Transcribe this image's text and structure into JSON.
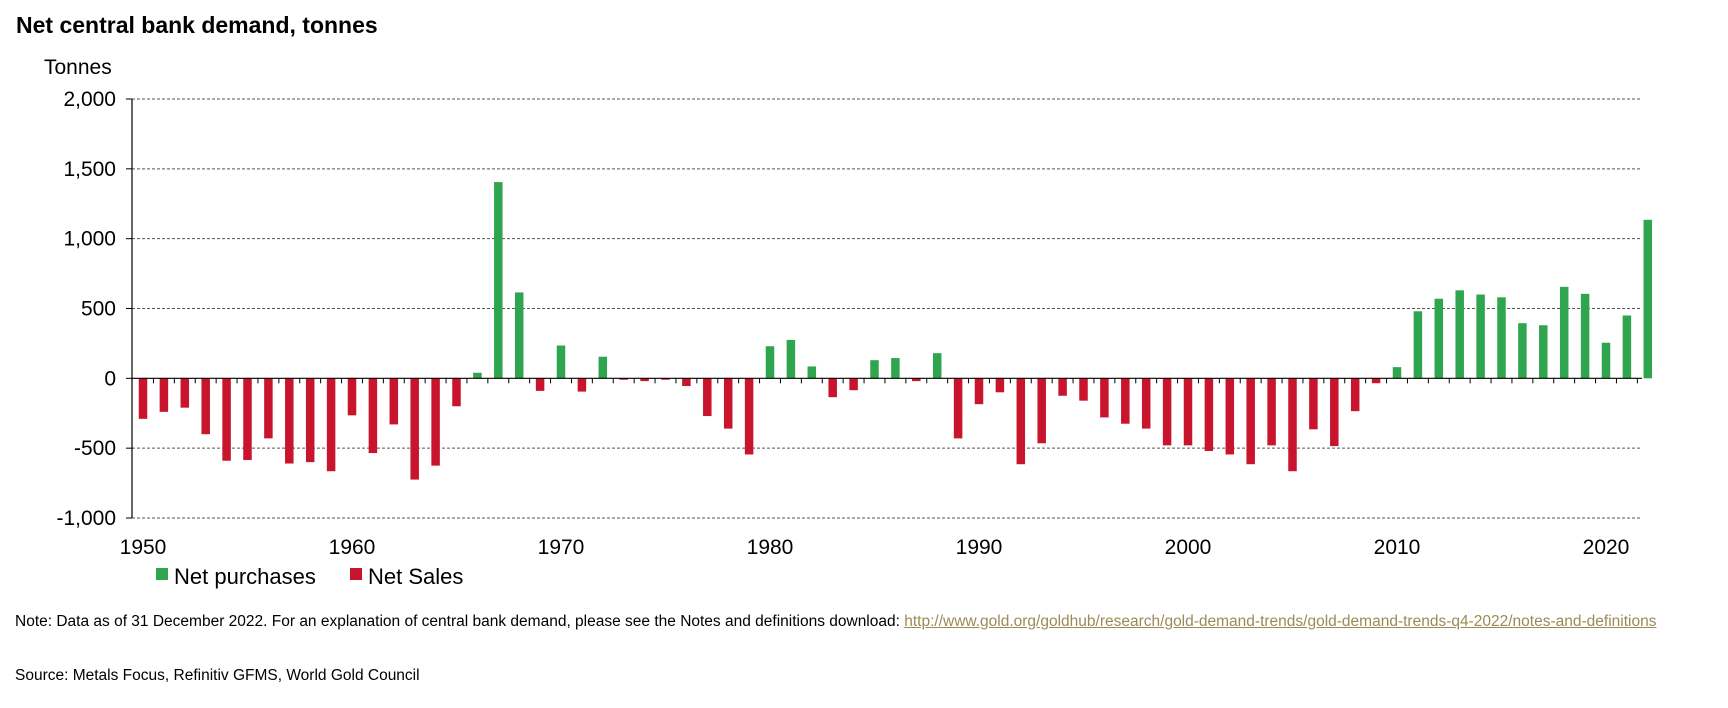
{
  "title": "Net central bank demand, tonnes",
  "note": {
    "text": "Note: Data as of 31 December 2022. For an explanation of central bank demand, please see the Notes and definitions download: ",
    "link": "http://www.gold.org/goldhub/research/gold-demand-trends/gold-demand-trends-q4-2022/notes-and-definitions"
  },
  "source": "Source: Metals Focus, Refinitiv GFMS, World Gold Council",
  "colors": {
    "positive": "#2ea54e",
    "negative": "#c8152d",
    "grid": "#555555",
    "axis": "#000000"
  },
  "chart_data": {
    "type": "bar",
    "title": "Net central bank demand, tonnes",
    "ylabel": "Tonnes",
    "xlabel": "",
    "ylim": [
      -1000,
      2000
    ],
    "yticks": [
      2000,
      1500,
      1000,
      500,
      0,
      -500,
      -1000
    ],
    "ytick_labels": [
      "2,000",
      "1,500",
      "1,000",
      "500",
      "0",
      "-500",
      "-1,000"
    ],
    "xticks": [
      1950,
      1960,
      1970,
      1980,
      1990,
      2000,
      2010,
      2020
    ],
    "xtick_labels": [
      "1950",
      "1960",
      "1970",
      "1980",
      "1990",
      "2000",
      "2010",
      "2020"
    ],
    "grid": "horizontal dashed",
    "legend": [
      {
        "label": "Net purchases",
        "color": "#2ea54e"
      },
      {
        "label": "Net Sales",
        "color": "#c8152d"
      }
    ],
    "legend_position": "bottom-left",
    "years": [
      1950,
      1951,
      1952,
      1953,
      1954,
      1955,
      1956,
      1957,
      1958,
      1959,
      1960,
      1961,
      1962,
      1963,
      1964,
      1965,
      1966,
      1967,
      1968,
      1969,
      1970,
      1971,
      1972,
      1973,
      1974,
      1975,
      1976,
      1977,
      1978,
      1979,
      1980,
      1981,
      1982,
      1983,
      1984,
      1985,
      1986,
      1987,
      1988,
      1989,
      1990,
      1991,
      1992,
      1993,
      1994,
      1995,
      1996,
      1997,
      1998,
      1999,
      2000,
      2001,
      2002,
      2003,
      2004,
      2005,
      2006,
      2007,
      2008,
      2009,
      2010,
      2011,
      2012,
      2013,
      2014,
      2015,
      2016,
      2017,
      2018,
      2019,
      2020,
      2021,
      2022
    ],
    "values": [
      -290,
      -240,
      -210,
      -400,
      -590,
      -585,
      -430,
      -610,
      -600,
      -665,
      -265,
      -535,
      -330,
      -725,
      -625,
      -200,
      40,
      1405,
      615,
      -90,
      235,
      -95,
      155,
      -10,
      -20,
      -10,
      -55,
      -270,
      -360,
      -545,
      230,
      275,
      85,
      -135,
      -85,
      130,
      145,
      -20,
      180,
      -430,
      -185,
      -100,
      -615,
      -465,
      -125,
      -160,
      -280,
      -325,
      -360,
      -480,
      -480,
      -520,
      -545,
      -615,
      -480,
      -665,
      -365,
      -485,
      -235,
      -35,
      80,
      480,
      570,
      630,
      600,
      580,
      395,
      380,
      655,
      605,
      255,
      450,
      1135
    ]
  }
}
